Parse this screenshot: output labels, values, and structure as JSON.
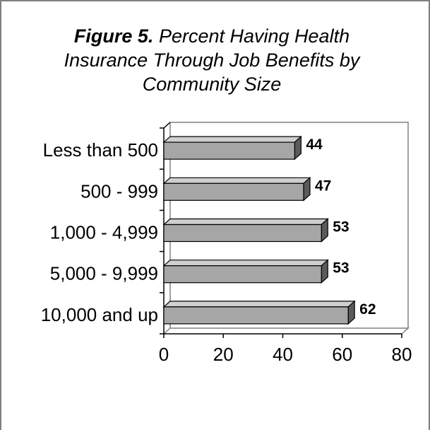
{
  "chart_data": {
    "type": "bar",
    "orientation": "horizontal",
    "title_lead": "Figure 5.",
    "title_rest": "Percent Having Health Insurance Through Job Benefits by Community Size",
    "categories": [
      "Less than 500",
      "500 - 999",
      "1,000 - 4,999",
      "5,000 - 9,999",
      "10,000 and up"
    ],
    "values": [
      44,
      47,
      53,
      53,
      62
    ],
    "value_labels": [
      "44",
      "47",
      "53",
      "53",
      "62"
    ],
    "xlim": [
      0,
      80
    ],
    "xticks": [
      "0",
      "20",
      "40",
      "60",
      "80"
    ],
    "grid": false,
    "bar_color": "#a6a6a6",
    "bar_side_color": "#5a5a5a",
    "bar_top_color": "#cfcfcf"
  }
}
